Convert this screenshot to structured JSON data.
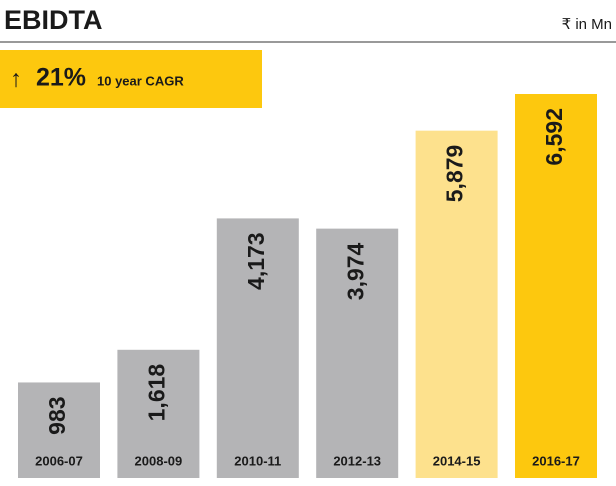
{
  "chart_data": {
    "type": "bar",
    "title": "EBIDTA",
    "unit_label": "₹ in Mn",
    "annotation": {
      "value": "21%",
      "text": "10 year CAGR"
    },
    "categories": [
      "2006-07",
      "2008-09",
      "2010-11",
      "2012-13",
      "2014-15",
      "2016-17"
    ],
    "values": [
      983,
      1618,
      4173,
      3974,
      5879,
      6592
    ],
    "value_labels": [
      "983",
      "1,618",
      "4,173",
      "3,974",
      "5,879",
      "6,592"
    ],
    "colors": [
      "#b4b4b6",
      "#b4b4b6",
      "#b4b4b6",
      "#b4b4b6",
      "#fde18d",
      "#fdc80e"
    ]
  }
}
